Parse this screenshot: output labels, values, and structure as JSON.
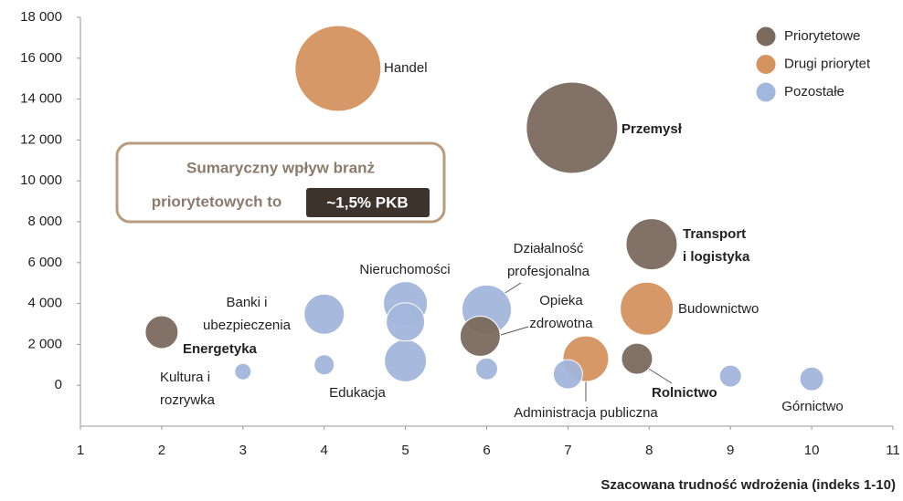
{
  "chart_data": {
    "type": "bubble",
    "xlabel": "Szacowana trudność wdrożenia (indeks 1-10)",
    "xlim": [
      1,
      11
    ],
    "xticks": [
      1,
      2,
      3,
      4,
      5,
      6,
      7,
      8,
      9,
      10,
      11
    ],
    "ylim": [
      -2000,
      18000
    ],
    "yticks": [
      0,
      {
        "value": 2000,
        "label": "2 000"
      },
      {
        "value": 4000,
        "label": "4 000"
      },
      {
        "value": 6000,
        "label": "6 000"
      },
      {
        "value": 8000,
        "label": "8 000"
      },
      {
        "value": 10000,
        "label": "10 000"
      },
      {
        "value": 12000,
        "label": "12 000"
      },
      {
        "value": 14000,
        "label": "14 000"
      },
      {
        "value": 16000,
        "label": "16 000"
      },
      {
        "value": 18000,
        "label": "18 000"
      }
    ],
    "legend": "upper right",
    "series": [
      {
        "name": "Priorytetowe",
        "color": "#7b6a5e",
        "x": [
          7.05,
          8.03,
          2.0,
          5.92,
          7.85
        ],
        "values": [
          12600,
          6900,
          2600,
          2400,
          1300
        ],
        "sizes": [
          2500,
          784,
          324,
          484,
          289
        ]
      },
      {
        "name": "Drugi priorytet",
        "color": "#d4935f",
        "x": [
          4.17,
          7.97,
          7.22
        ],
        "values": [
          15500,
          3750,
          1300
        ],
        "sizes": [
          2209,
          841,
          625
        ]
      },
      {
        "name": "Pozostałe",
        "color": "#a3b6db",
        "x": [
          3.0,
          4.0,
          5.0,
          5.0,
          5.0,
          4.0,
          6.0,
          6.0,
          7.0,
          9.0,
          10.0
        ],
        "values": [
          670,
          3480,
          4000,
          3100,
          1200,
          1000,
          800,
          3700,
          540,
          450,
          310
        ],
        "sizes": [
          81,
          484,
          576,
          441,
          529,
          121,
          144,
          729,
          256,
          144,
          169
        ]
      }
    ],
    "annotations": [
      {
        "lines": [
          "Handel"
        ]
      },
      {
        "lines": [
          "Przemysł"
        ],
        "bold": true
      },
      {
        "lines": [
          "Transport",
          "i logistyka"
        ],
        "bold": true
      },
      {
        "lines": [
          "Budownictwo"
        ]
      },
      {
        "lines": [
          "Energetyka"
        ],
        "bold": true
      },
      {
        "lines": [
          "Kultura i",
          "rozrywka"
        ]
      },
      {
        "lines": [
          "Banki i",
          "ubezpieczenia"
        ]
      },
      {
        "lines": [
          "Nieruchomości"
        ]
      },
      {
        "lines": [
          "Edukacja"
        ]
      },
      {
        "lines": [
          "Działalność",
          "profesjonalna"
        ]
      },
      {
        "lines": [
          "Opieka",
          "zdrowotna"
        ]
      },
      {
        "lines": [
          "Administracja publiczna"
        ]
      },
      {
        "lines": [
          "Rolnictwo"
        ],
        "bold": true
      },
      {
        "lines": [
          "Górnictwo"
        ]
      }
    ],
    "callout": {
      "lines": [
        "Sumaryczny wpływ branż",
        "priorytetowych to"
      ],
      "highlight": "~1,5% PKB"
    }
  }
}
